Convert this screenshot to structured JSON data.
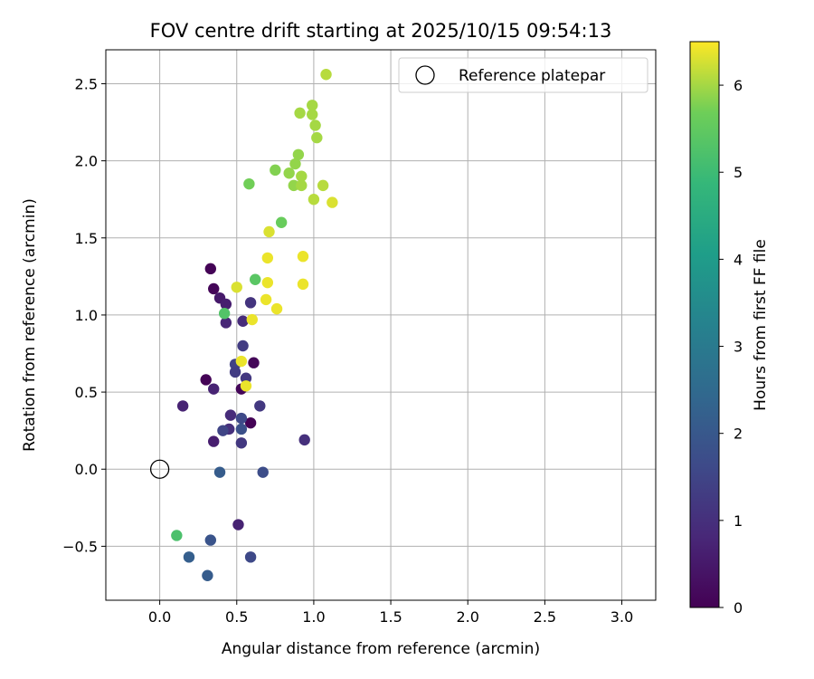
{
  "chart_data": {
    "type": "scatter",
    "title": "FOV centre drift starting at 2025/10/15 09:54:13",
    "xlabel": "Angular distance from reference (arcmin)",
    "ylabel": "Rotation from reference (arcmin)",
    "xlim": [
      -0.35,
      3.22
    ],
    "ylim": [
      -0.85,
      2.72
    ],
    "xticks": [
      0.0,
      0.5,
      1.0,
      1.5,
      2.0,
      2.5,
      3.0
    ],
    "xtick_labels": [
      "0.0",
      "0.5",
      "1.0",
      "1.5",
      "2.0",
      "2.5",
      "3.0"
    ],
    "yticks": [
      -0.5,
      0.0,
      0.5,
      1.0,
      1.5,
      2.0,
      2.5
    ],
    "ytick_labels": [
      "−0.5",
      "0.0",
      "0.5",
      "1.0",
      "1.5",
      "2.0",
      "2.5"
    ],
    "grid": true,
    "legend": {
      "placement": "top-right",
      "label": "Reference platepar"
    },
    "reference_point": {
      "x": 0.0,
      "y": 0.0
    },
    "colorbar": {
      "label": "Hours from first FF file",
      "min": 0,
      "max": 6.5,
      "ticks": [
        0,
        1,
        2,
        3,
        4,
        5,
        6
      ],
      "tick_labels": [
        "0",
        "1",
        "2",
        "3",
        "4",
        "5",
        "6"
      ]
    },
    "points": [
      {
        "x": 0.33,
        "y": 1.3,
        "c": 0.05
      },
      {
        "x": 0.35,
        "y": 1.17,
        "c": 0.1
      },
      {
        "x": 0.3,
        "y": 0.58,
        "c": 0.05
      },
      {
        "x": 0.53,
        "y": 0.52,
        "c": 0.1
      },
      {
        "x": 0.61,
        "y": 0.69,
        "c": 0.1
      },
      {
        "x": 0.59,
        "y": 0.3,
        "c": 0.05
      },
      {
        "x": 0.39,
        "y": 1.11,
        "c": 0.5
      },
      {
        "x": 0.43,
        "y": 1.07,
        "c": 0.6
      },
      {
        "x": 0.43,
        "y": 0.95,
        "c": 0.8
      },
      {
        "x": 0.35,
        "y": 0.52,
        "c": 0.7
      },
      {
        "x": 0.15,
        "y": 0.41,
        "c": 0.7
      },
      {
        "x": 0.35,
        "y": 0.18,
        "c": 0.6
      },
      {
        "x": 0.46,
        "y": 0.35,
        "c": 0.9
      },
      {
        "x": 0.45,
        "y": 0.26,
        "c": 1.0
      },
      {
        "x": 0.51,
        "y": -0.36,
        "c": 0.7
      },
      {
        "x": 0.94,
        "y": 0.19,
        "c": 1.0
      },
      {
        "x": 0.65,
        "y": 0.41,
        "c": 1.2
      },
      {
        "x": 0.54,
        "y": 0.96,
        "c": 0.9
      },
      {
        "x": 0.59,
        "y": 1.08,
        "c": 1.1
      },
      {
        "x": 0.54,
        "y": 0.8,
        "c": 1.3
      },
      {
        "x": 0.49,
        "y": 0.68,
        "c": 1.4
      },
      {
        "x": 0.49,
        "y": 0.63,
        "c": 1.3
      },
      {
        "x": 0.56,
        "y": 0.59,
        "c": 1.2
      },
      {
        "x": 0.53,
        "y": 0.17,
        "c": 1.2
      },
      {
        "x": 0.41,
        "y": 0.25,
        "c": 1.5
      },
      {
        "x": 0.53,
        "y": 0.33,
        "c": 1.6
      },
      {
        "x": 0.53,
        "y": 0.26,
        "c": 1.8
      },
      {
        "x": 0.39,
        "y": -0.02,
        "c": 2.1
      },
      {
        "x": 0.67,
        "y": -0.02,
        "c": 1.7
      },
      {
        "x": 0.33,
        "y": -0.46,
        "c": 1.9
      },
      {
        "x": 0.19,
        "y": -0.57,
        "c": 2.2
      },
      {
        "x": 0.31,
        "y": -0.69,
        "c": 2.1
      },
      {
        "x": 0.59,
        "y": -0.57,
        "c": 1.6
      },
      {
        "x": 0.11,
        "y": -0.43,
        "c": 5.2
      },
      {
        "x": 0.42,
        "y": 1.01,
        "c": 5.3
      },
      {
        "x": 0.62,
        "y": 1.23,
        "c": 5.4
      },
      {
        "x": 0.79,
        "y": 1.6,
        "c": 5.6
      },
      {
        "x": 0.58,
        "y": 1.85,
        "c": 5.7
      },
      {
        "x": 0.75,
        "y": 1.94,
        "c": 5.8
      },
      {
        "x": 0.84,
        "y": 1.92,
        "c": 5.9
      },
      {
        "x": 0.87,
        "y": 1.84,
        "c": 5.9
      },
      {
        "x": 0.88,
        "y": 1.98,
        "c": 5.9
      },
      {
        "x": 0.9,
        "y": 2.04,
        "c": 5.9
      },
      {
        "x": 0.92,
        "y": 1.9,
        "c": 6.0
      },
      {
        "x": 0.92,
        "y": 1.84,
        "c": 6.0
      },
      {
        "x": 0.91,
        "y": 2.31,
        "c": 6.0
      },
      {
        "x": 0.99,
        "y": 2.36,
        "c": 6.0
      },
      {
        "x": 0.99,
        "y": 2.3,
        "c": 6.0
      },
      {
        "x": 1.01,
        "y": 2.23,
        "c": 6.0
      },
      {
        "x": 1.02,
        "y": 2.15,
        "c": 6.0
      },
      {
        "x": 1.08,
        "y": 2.56,
        "c": 6.1
      },
      {
        "x": 1.0,
        "y": 1.75,
        "c": 6.1
      },
      {
        "x": 1.06,
        "y": 1.84,
        "c": 6.1
      },
      {
        "x": 1.12,
        "y": 1.73,
        "c": 6.3
      },
      {
        "x": 0.71,
        "y": 1.54,
        "c": 6.3
      },
      {
        "x": 0.7,
        "y": 1.37,
        "c": 6.4
      },
      {
        "x": 0.93,
        "y": 1.38,
        "c": 6.4
      },
      {
        "x": 0.7,
        "y": 1.21,
        "c": 6.4
      },
      {
        "x": 0.93,
        "y": 1.2,
        "c": 6.4
      },
      {
        "x": 0.5,
        "y": 1.18,
        "c": 6.3
      },
      {
        "x": 0.69,
        "y": 1.1,
        "c": 6.4
      },
      {
        "x": 0.76,
        "y": 1.04,
        "c": 6.4
      },
      {
        "x": 0.6,
        "y": 0.97,
        "c": 6.4
      },
      {
        "x": 0.53,
        "y": 0.7,
        "c": 6.4
      },
      {
        "x": 0.56,
        "y": 0.54,
        "c": 6.4
      }
    ]
  }
}
